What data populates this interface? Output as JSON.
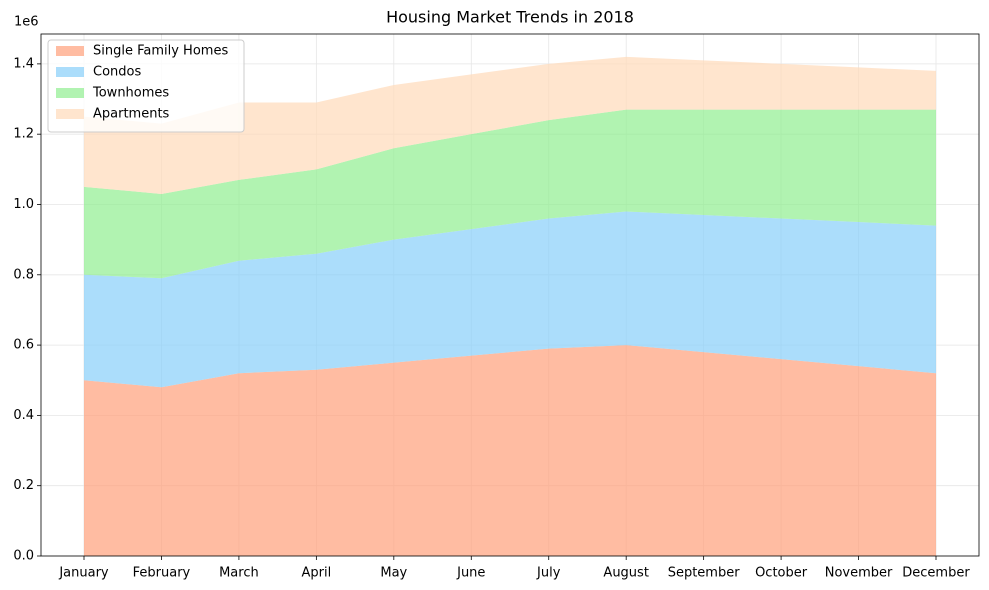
{
  "chart_data": {
    "type": "stacked_area",
    "title": "Housing Market Trends in 2018",
    "y_offset_label": "1e6",
    "categories": [
      "January",
      "February",
      "March",
      "April",
      "May",
      "June",
      "July",
      "August",
      "September",
      "October",
      "November",
      "December"
    ],
    "series": [
      {
        "name": "Single Family Homes",
        "color": "#FFA07A",
        "values": [
          500000,
          480000,
          520000,
          530000,
          550000,
          570000,
          590000,
          600000,
          580000,
          560000,
          540000,
          520000
        ]
      },
      {
        "name": "Condos",
        "color": "#87CEFA",
        "values": [
          300000,
          310000,
          320000,
          330000,
          350000,
          360000,
          370000,
          380000,
          390000,
          400000,
          410000,
          420000
        ]
      },
      {
        "name": "Townhomes",
        "color": "#90EE90",
        "values": [
          250000,
          240000,
          230000,
          240000,
          260000,
          270000,
          280000,
          290000,
          300000,
          310000,
          320000,
          330000
        ]
      },
      {
        "name": "Apartments",
        "color": "#FFDAB9",
        "values": [
          200000,
          200000,
          220000,
          190000,
          180000,
          170000,
          160000,
          150000,
          140000,
          130000,
          120000,
          110000
        ]
      }
    ],
    "ylim": [
      0,
      1485000
    ],
    "yticks": [
      {
        "value": 0,
        "label": "0.0"
      },
      {
        "value": 200000,
        "label": "0.2"
      },
      {
        "value": 400000,
        "label": "0.4"
      },
      {
        "value": 600000,
        "label": "0.6"
      },
      {
        "value": 800000,
        "label": "0.8"
      },
      {
        "value": 1000000,
        "label": "1.0"
      },
      {
        "value": 1200000,
        "label": "1.2"
      },
      {
        "value": 1400000,
        "label": "1.4"
      }
    ],
    "grid": true,
    "legend": "upper left",
    "opacity": 0.7
  }
}
